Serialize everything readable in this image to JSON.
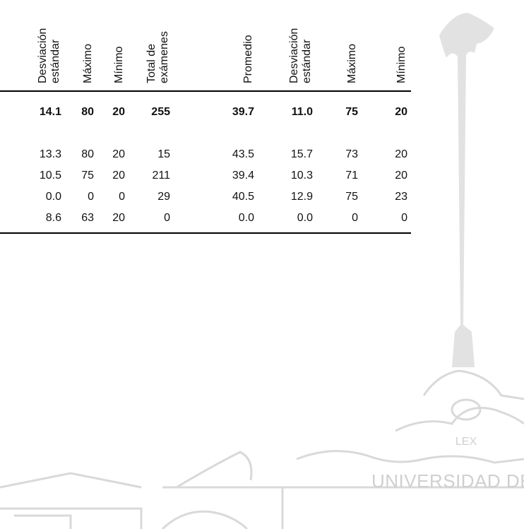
{
  "table": {
    "headers": [
      [
        "Desviación",
        "estándar"
      ],
      [
        "Máximo"
      ],
      [
        "Mínimo"
      ],
      [
        "Total de",
        "exámenes"
      ],
      [
        "Promedio"
      ],
      [
        "Desviación",
        "estándar"
      ],
      [
        "Máximo"
      ],
      [
        "Mínimo"
      ]
    ],
    "rows": [
      [
        "14.1",
        "80",
        "20",
        "255",
        "39.7",
        "11.0",
        "75",
        "20"
      ],
      [
        "13.3",
        "80",
        "20",
        "15",
        "43.5",
        "15.7",
        "73",
        "20"
      ],
      [
        "10.5",
        "75",
        "20",
        "211",
        "39.4",
        "10.3",
        "71",
        "20"
      ],
      [
        "0.0",
        "0",
        "0",
        "29",
        "40.5",
        "12.9",
        "75",
        "23"
      ],
      [
        "8.6",
        "63",
        "20",
        "0",
        "0.0",
        "0.0",
        "0",
        "0"
      ]
    ]
  },
  "watermark": {
    "emblem_text": "LEX",
    "text": "UNIVERSIDAD DE GUA"
  }
}
